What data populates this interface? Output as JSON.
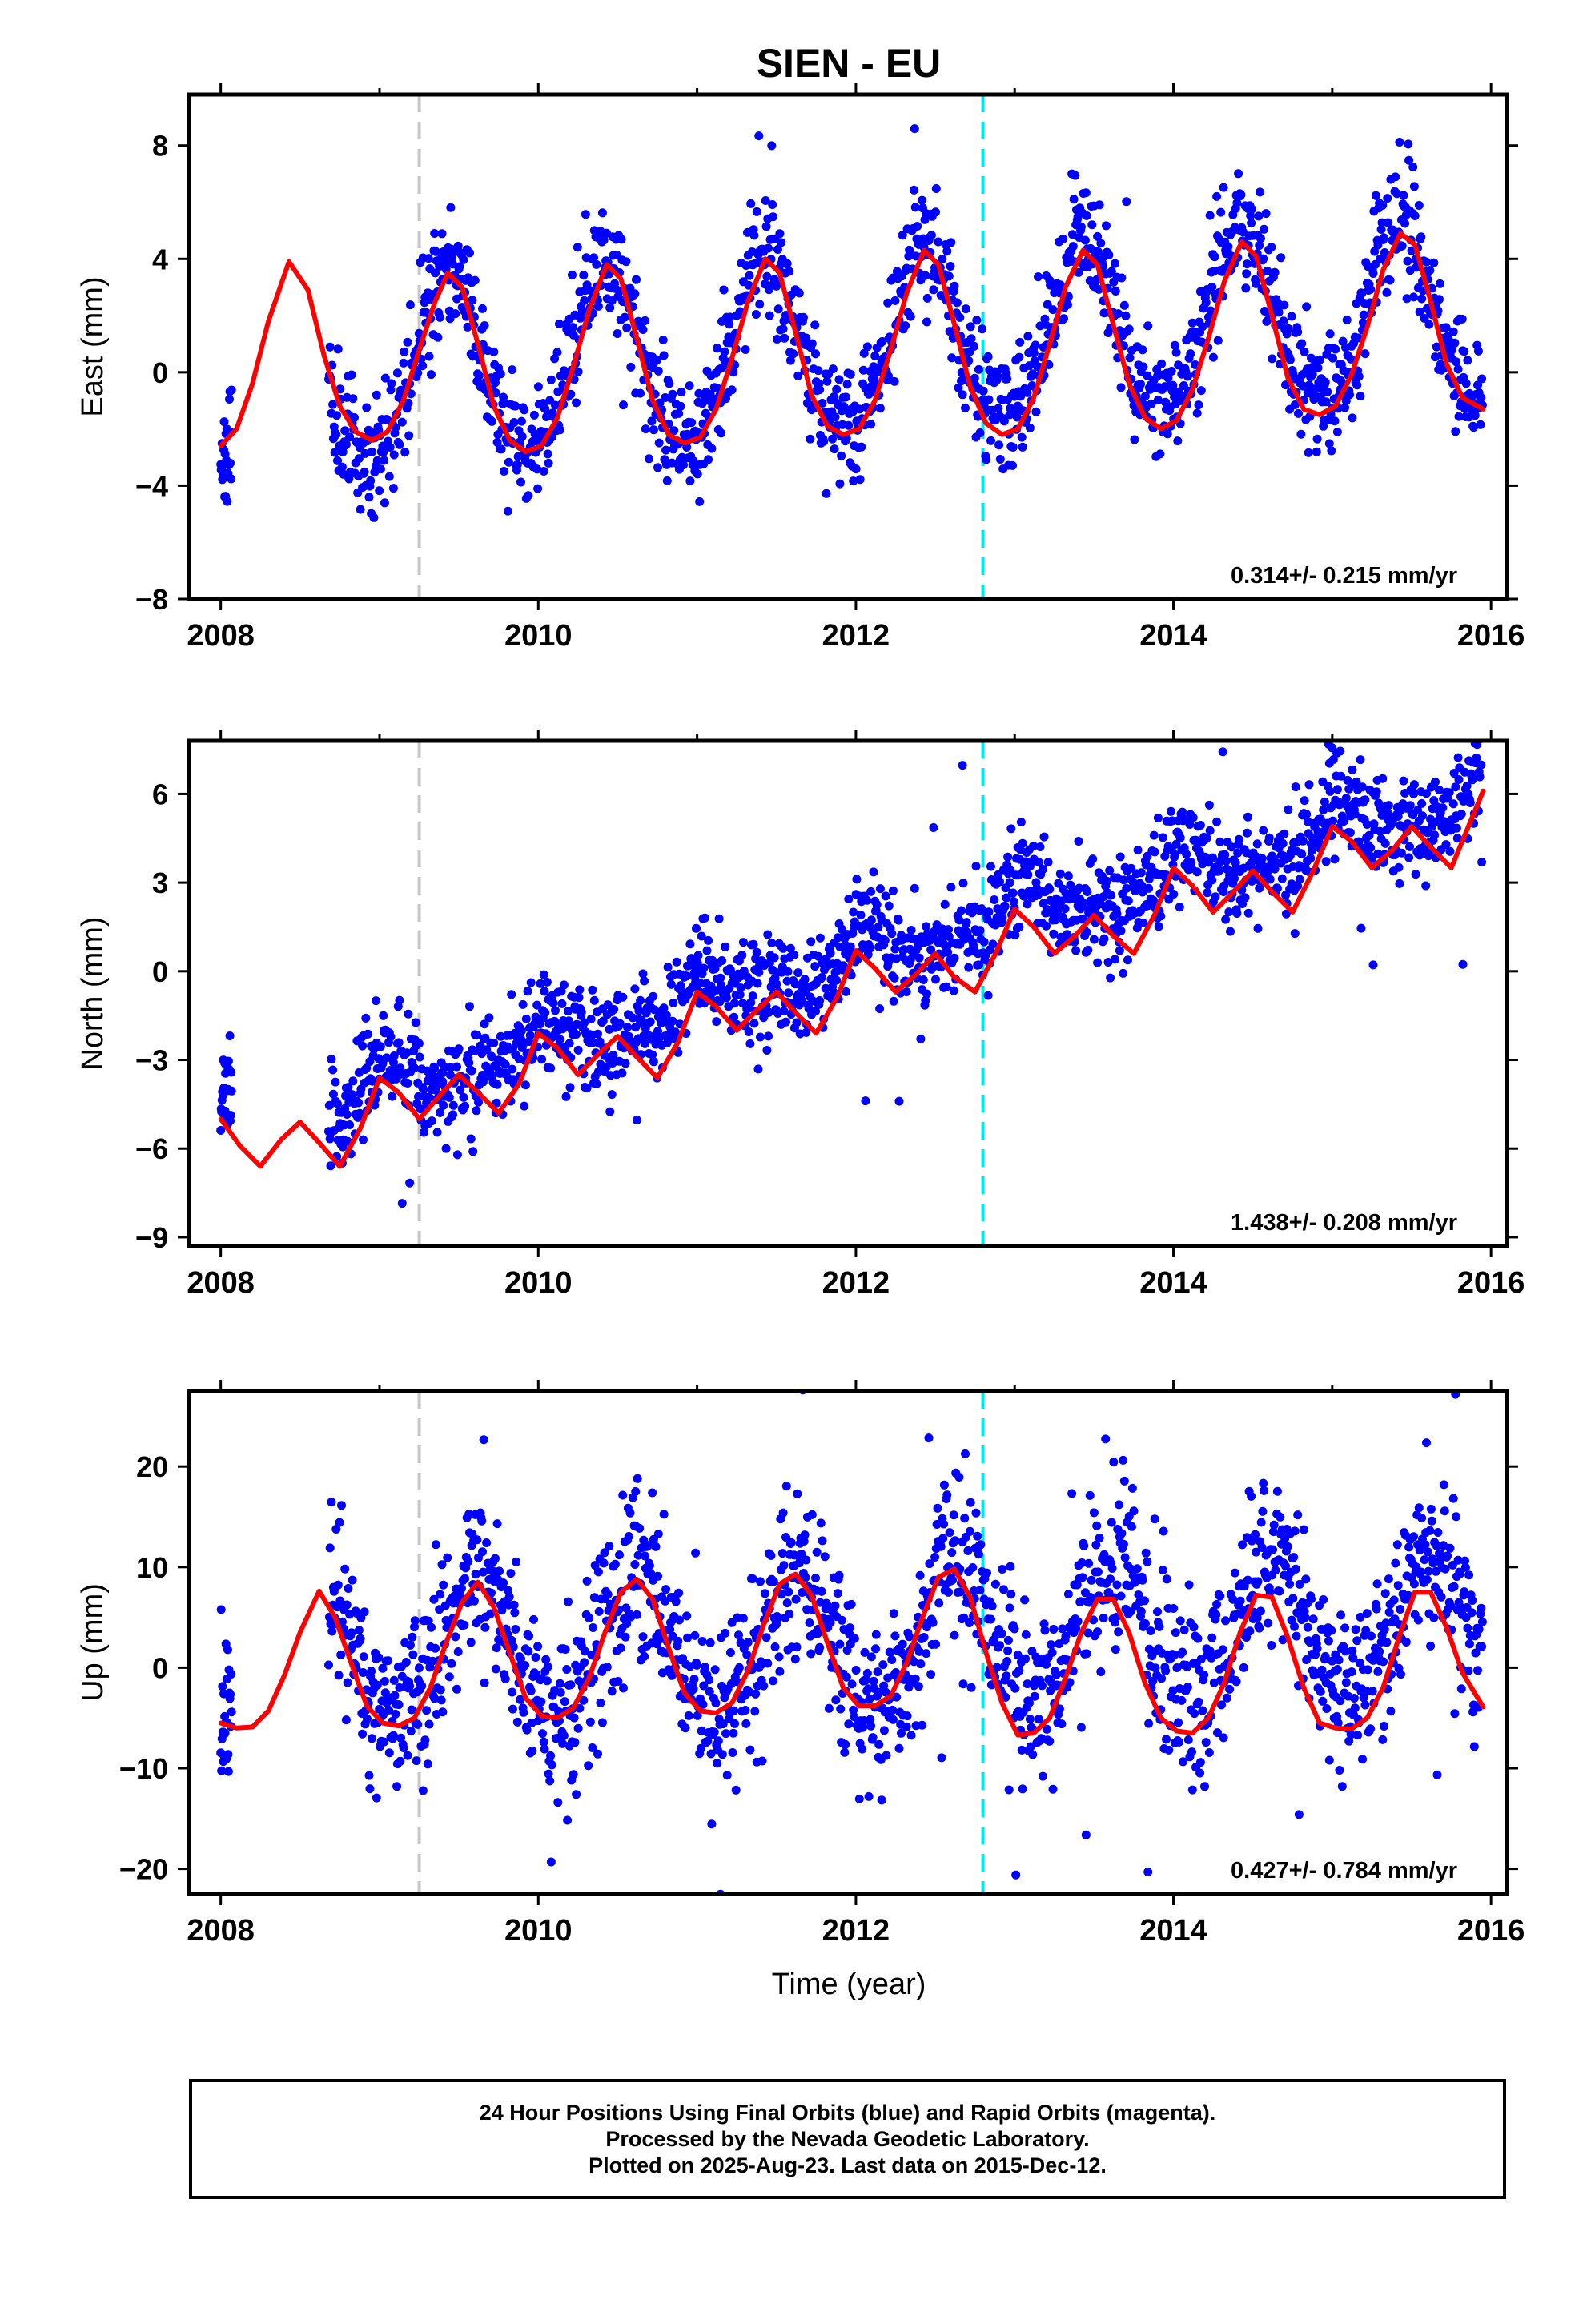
{
  "chart_data": {
    "title": "SIEN - EU",
    "type": "scatter",
    "xlabel": "Time (year)",
    "xlim": [
      2007.8,
      2016.1
    ],
    "xticks": [
      2008,
      2010,
      2012,
      2014,
      2016
    ],
    "xtick_labels": [
      "2008",
      "2010",
      "2012",
      "2014",
      "2016"
    ],
    "vertical_lines": [
      {
        "x": 2009.25,
        "color": "#c8c8c8",
        "style": "dashed"
      },
      {
        "x": 2012.8,
        "color": "#00e5ee",
        "style": "dashed"
      }
    ],
    "colors": {
      "final_orbits": "#0000ff",
      "fit": "#ff0000"
    },
    "panels": [
      {
        "ylabel": "East (mm)",
        "ylim": [
          -8,
          9.8
        ],
        "yticks": [
          -8,
          -4,
          0,
          4,
          8
        ],
        "ytick_labels": [
          "−8",
          "−4",
          "0",
          "4",
          "8"
        ],
        "rate": "0.314+/- 0.215 mm/yr",
        "model": {
          "offset": -0.3,
          "trend": 0.314,
          "amp_annual": 3.2,
          "phase_peak": 0.43,
          "amp_semi": 0.35,
          "noise": 1.0,
          "seed": 11
        },
        "fit": {
          "x": [
            2008.0,
            2008.1,
            2008.2,
            2008.3,
            2008.43,
            2008.55,
            2008.65,
            2008.75,
            2008.85,
            2008.95,
            2009.05,
            2009.15,
            2009.25,
            2009.35,
            2009.43,
            2009.52,
            2009.62,
            2009.72,
            2009.82,
            2009.92,
            2010.02,
            2010.12,
            2010.22,
            2010.32,
            2010.43,
            2010.52,
            2010.62,
            2010.72,
            2010.82,
            2010.92,
            2011.02,
            2011.12,
            2011.22,
            2011.32,
            2011.43,
            2011.52,
            2011.62,
            2011.72,
            2011.82,
            2011.92,
            2012.02,
            2012.12,
            2012.22,
            2012.32,
            2012.43,
            2012.52,
            2012.62,
            2012.72,
            2012.82,
            2012.92,
            2013.02,
            2013.12,
            2013.22,
            2013.32,
            2013.43,
            2013.52,
            2013.62,
            2013.72,
            2013.82,
            2013.92,
            2014.02,
            2014.12,
            2014.22,
            2014.32,
            2014.43,
            2014.52,
            2014.62,
            2014.72,
            2014.82,
            2014.92,
            2015.02,
            2015.12,
            2015.22,
            2015.32,
            2015.43,
            2015.52,
            2015.62,
            2015.72,
            2015.82,
            2015.95
          ],
          "y": [
            -2.6,
            -2.0,
            -0.4,
            1.8,
            3.9,
            2.9,
            0.6,
            -1.2,
            -2.1,
            -2.4,
            -2.1,
            -1.0,
            0.8,
            2.5,
            3.5,
            3.0,
            1.0,
            -1.2,
            -2.4,
            -2.8,
            -2.6,
            -1.6,
            0.2,
            2.2,
            3.8,
            3.3,
            1.2,
            -1.0,
            -2.2,
            -2.5,
            -2.3,
            -1.3,
            0.5,
            2.5,
            4.0,
            3.5,
            1.4,
            -0.8,
            -1.9,
            -2.2,
            -2.0,
            -1.0,
            0.8,
            2.8,
            4.3,
            3.8,
            1.7,
            -0.5,
            -1.8,
            -2.2,
            -2.0,
            -0.9,
            1.0,
            3.0,
            4.3,
            3.8,
            1.7,
            -0.4,
            -1.6,
            -2.0,
            -1.7,
            -0.6,
            1.2,
            3.2,
            4.6,
            4.1,
            2.0,
            -0.2,
            -1.3,
            -1.5,
            -1.2,
            -0.1,
            1.6,
            3.6,
            4.9,
            4.5,
            2.5,
            0.3,
            -0.9,
            -1.3
          ]
        }
      },
      {
        "ylabel": "North (mm)",
        "ylim": [
          -9.3,
          7.8
        ],
        "yticks": [
          -9,
          -6,
          -3,
          0,
          3,
          6
        ],
        "ytick_labels": [
          "−9",
          "−6",
          "−3",
          "0",
          "3",
          "6"
        ],
        "rate": "1.438+/- 0.208 mm/yr",
        "model": {
          "offset": -5.4,
          "trend": 1.438,
          "amp_annual": 0.75,
          "phase_peak": 0.05,
          "amp_semi": 0.3,
          "noise": 0.85,
          "seed": 23
        },
        "fit": {
          "x": [
            2008.0,
            2008.12,
            2008.25,
            2008.38,
            2008.5,
            2008.62,
            2008.75,
            2008.88,
            2009.0,
            2009.12,
            2009.25,
            2009.38,
            2009.5,
            2009.62,
            2009.75,
            2009.88,
            2010.0,
            2010.12,
            2010.25,
            2010.38,
            2010.5,
            2010.62,
            2010.75,
            2010.88,
            2011.0,
            2011.12,
            2011.25,
            2011.38,
            2011.5,
            2011.62,
            2011.75,
            2011.88,
            2012.0,
            2012.12,
            2012.25,
            2012.38,
            2012.5,
            2012.62,
            2012.75,
            2012.88,
            2013.0,
            2013.12,
            2013.25,
            2013.38,
            2013.5,
            2013.62,
            2013.75,
            2013.88,
            2014.0,
            2014.12,
            2014.25,
            2014.38,
            2014.5,
            2014.62,
            2014.75,
            2014.88,
            2015.0,
            2015.12,
            2015.25,
            2015.38,
            2015.5,
            2015.62,
            2015.75,
            2015.95
          ],
          "y": [
            -5.0,
            -5.9,
            -6.6,
            -5.7,
            -5.1,
            -5.8,
            -6.6,
            -5.3,
            -3.6,
            -4.1,
            -5.0,
            -4.2,
            -3.5,
            -4.1,
            -4.8,
            -3.8,
            -2.1,
            -2.6,
            -3.5,
            -2.8,
            -2.2,
            -2.9,
            -3.6,
            -2.4,
            -0.7,
            -1.2,
            -2.0,
            -1.3,
            -0.7,
            -1.4,
            -2.1,
            -0.9,
            0.7,
            0.1,
            -0.7,
            -0.1,
            0.6,
            -0.2,
            -0.7,
            0.6,
            2.1,
            1.5,
            0.6,
            1.2,
            1.9,
            1.2,
            0.6,
            1.9,
            3.5,
            2.9,
            2.0,
            2.7,
            3.4,
            2.7,
            2.0,
            3.4,
            4.9,
            4.4,
            3.5,
            4.1,
            4.9,
            4.2,
            3.5,
            6.1
          ]
        }
      },
      {
        "ylabel": "Up (mm)",
        "ylim": [
          -22.5,
          27.5
        ],
        "yticks": [
          -20,
          -10,
          0,
          10,
          20
        ],
        "ytick_labels": [
          "−20",
          "−10",
          "0",
          "10",
          "20"
        ],
        "rate": "0.427+/- 0.784 mm/yr",
        "model": {
          "offset": 1.0,
          "trend": 0.427,
          "amp_annual": 7.0,
          "phase_peak": 0.62,
          "amp_semi": 0.8,
          "noise": 4.0,
          "seed": 37
        },
        "fit": {
          "x": [
            2008.0,
            2008.1,
            2008.2,
            2008.3,
            2008.4,
            2008.5,
            2008.62,
            2008.72,
            2008.82,
            2008.92,
            2009.02,
            2009.12,
            2009.22,
            2009.32,
            2009.42,
            2009.52,
            2009.62,
            2009.72,
            2009.82,
            2009.92,
            2010.02,
            2010.12,
            2010.22,
            2010.32,
            2010.42,
            2010.52,
            2010.62,
            2010.72,
            2010.82,
            2010.92,
            2011.02,
            2011.12,
            2011.22,
            2011.32,
            2011.42,
            2011.52,
            2011.62,
            2011.72,
            2011.82,
            2011.92,
            2012.02,
            2012.12,
            2012.22,
            2012.32,
            2012.42,
            2012.52,
            2012.62,
            2012.72,
            2012.82,
            2012.92,
            2013.02,
            2013.12,
            2013.22,
            2013.32,
            2013.42,
            2013.52,
            2013.62,
            2013.72,
            2013.82,
            2013.92,
            2014.02,
            2014.12,
            2014.22,
            2014.32,
            2014.42,
            2014.52,
            2014.62,
            2014.72,
            2014.82,
            2014.92,
            2015.02,
            2015.12,
            2015.22,
            2015.32,
            2015.42,
            2015.52,
            2015.62,
            2015.72,
            2015.82,
            2015.95
          ],
          "y": [
            -5.5,
            -6.0,
            -5.9,
            -4.3,
            -0.8,
            3.5,
            7.6,
            5.0,
            0.5,
            -3.8,
            -5.5,
            -5.8,
            -5.0,
            -2.0,
            2.5,
            6.5,
            8.5,
            6.0,
            1.5,
            -3.0,
            -4.8,
            -5.0,
            -4.0,
            -1.0,
            3.5,
            7.5,
            8.8,
            6.8,
            2.0,
            -2.5,
            -4.3,
            -4.5,
            -3.5,
            -0.3,
            4.3,
            8.3,
            9.3,
            7.2,
            2.5,
            -2.0,
            -3.8,
            -3.8,
            -2.8,
            0.5,
            5.0,
            9.0,
            9.8,
            7.0,
            1.5,
            -3.5,
            -6.7,
            -6.5,
            -5.0,
            -1.0,
            3.5,
            6.8,
            6.8,
            3.5,
            -1.5,
            -5.0,
            -6.3,
            -6.5,
            -5.0,
            -1.5,
            3.5,
            7.2,
            7.0,
            3.0,
            -2.0,
            -5.5,
            -6.0,
            -6.1,
            -5.0,
            -2.0,
            3.0,
            7.5,
            7.5,
            4.0,
            -0.5,
            -3.9
          ]
        }
      }
    ]
  },
  "info_box": {
    "line1": "24 Hour Positions Using Final Orbits (blue) and Rapid Orbits (magenta).",
    "line2": "Processed by the Nevada Geodetic Laboratory.",
    "line3": "Plotted on 2025-Aug-23. Last data on 2015-Dec-12."
  }
}
